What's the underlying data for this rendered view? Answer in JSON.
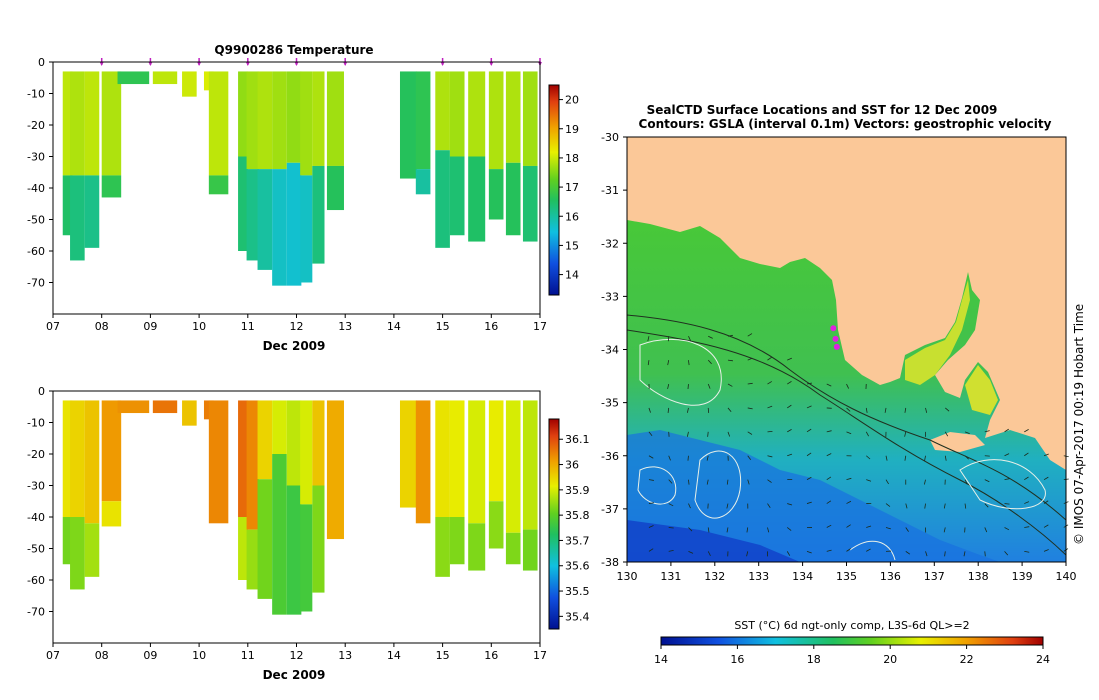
{
  "chart_data": [
    {
      "type": "heatmap",
      "title": "Q9900286  Temperature",
      "xlabel": "Dec 2009",
      "x_ticks": [
        "07",
        "08",
        "09",
        "10",
        "11",
        "12",
        "13",
        "14",
        "15",
        "16",
        "17"
      ],
      "y_ticks": [
        "0",
        "-10",
        "-20",
        "-30",
        "-40",
        "-50",
        "-60",
        "-70"
      ],
      "ylim": [
        -80,
        0
      ],
      "xlim": [
        7,
        17
      ],
      "profile_markers": [
        8.0,
        9.0,
        10.0,
        11.0,
        12.0,
        13.0,
        15.0,
        16.0,
        17.0
      ],
      "colorbar_ticks": [
        "14",
        "15",
        "16",
        "17",
        "18",
        "19",
        "20"
      ],
      "colorbar_range": [
        13.3,
        20.5
      ],
      "profiles": [
        {
          "t": 7.3,
          "w": 0.2,
          "bottom": -55,
          "layers": [
            [
              -3,
              -36,
              17.9
            ],
            [
              -36,
              -55,
              16.5
            ]
          ]
        },
        {
          "t": 7.5,
          "w": 0.3,
          "bottom": -63,
          "layers": [
            [
              -3,
              -36,
              17.8
            ],
            [
              -36,
              -63,
              16.3
            ]
          ]
        },
        {
          "t": 7.8,
          "w": 0.3,
          "bottom": -59,
          "layers": [
            [
              -3,
              -36,
              17.9
            ],
            [
              -36,
              -59,
              16.2
            ]
          ]
        },
        {
          "t": 8.2,
          "w": 0.4,
          "bottom": -43,
          "layers": [
            [
              -3,
              -36,
              17.8
            ],
            [
              -36,
              -43,
              16.7
            ]
          ]
        },
        {
          "t": 8.65,
          "w": 0.65,
          "bottom": -7,
          "layers": [
            [
              -3,
              -7,
              16.7
            ]
          ]
        },
        {
          "t": 9.3,
          "w": 0.5,
          "bottom": -7,
          "layers": [
            [
              -3,
              -7,
              17.9
            ]
          ]
        },
        {
          "t": 9.8,
          "w": 0.3,
          "bottom": -11,
          "layers": [
            [
              -3,
              -11,
              18.0
            ]
          ]
        },
        {
          "t": 10.2,
          "w": 0.2,
          "bottom": -9,
          "layers": [
            [
              -3,
              -9,
              18.1
            ]
          ]
        },
        {
          "t": 10.4,
          "w": 0.4,
          "bottom": -42,
          "layers": [
            [
              -3,
              -36,
              17.9
            ],
            [
              -36,
              -42,
              16.8
            ]
          ]
        },
        {
          "t": 10.9,
          "w": 0.2,
          "bottom": -60,
          "layers": [
            [
              -3,
              -30,
              17.6
            ],
            [
              -30,
              -60,
              16.4
            ]
          ]
        },
        {
          "t": 11.1,
          "w": 0.25,
          "bottom": -63,
          "layers": [
            [
              -3,
              -34,
              17.7
            ],
            [
              -34,
              -63,
              16.2
            ]
          ]
        },
        {
          "t": 11.35,
          "w": 0.3,
          "bottom": -66,
          "layers": [
            [
              -3,
              -34,
              17.8
            ],
            [
              -34,
              -66,
              16.0
            ]
          ]
        },
        {
          "t": 11.65,
          "w": 0.3,
          "bottom": -71,
          "layers": [
            [
              -3,
              -34,
              17.7
            ],
            [
              -34,
              -71,
              15.7
            ]
          ]
        },
        {
          "t": 11.95,
          "w": 0.3,
          "bottom": -71,
          "layers": [
            [
              -3,
              -32,
              17.6
            ],
            [
              -32,
              -71,
              15.6
            ]
          ]
        },
        {
          "t": 12.2,
          "w": 0.25,
          "bottom": -70,
          "layers": [
            [
              -3,
              -36,
              17.7
            ],
            [
              -36,
              -70,
              15.7
            ]
          ]
        },
        {
          "t": 12.45,
          "w": 0.25,
          "bottom": -64,
          "layers": [
            [
              -3,
              -33,
              17.8
            ],
            [
              -33,
              -64,
              16.3
            ]
          ]
        },
        {
          "t": 12.8,
          "w": 0.35,
          "bottom": -47,
          "layers": [
            [
              -3,
              -33,
              17.7
            ],
            [
              -33,
              -47,
              16.6
            ]
          ]
        },
        {
          "t": 14.3,
          "w": 0.35,
          "bottom": -37,
          "layers": [
            [
              -3,
              -37,
              16.6
            ]
          ]
        },
        {
          "t": 14.6,
          "w": 0.3,
          "bottom": -42,
          "layers": [
            [
              -3,
              -34,
              16.7
            ],
            [
              -34,
              -42,
              16.0
            ]
          ]
        },
        {
          "t": 15.0,
          "w": 0.3,
          "bottom": -59,
          "layers": [
            [
              -3,
              -28,
              17.8
            ],
            [
              -28,
              -59,
              16.3
            ]
          ]
        },
        {
          "t": 15.3,
          "w": 0.3,
          "bottom": -55,
          "layers": [
            [
              -3,
              -30,
              17.7
            ],
            [
              -30,
              -55,
              16.4
            ]
          ]
        },
        {
          "t": 15.7,
          "w": 0.35,
          "bottom": -57,
          "layers": [
            [
              -3,
              -30,
              17.8
            ],
            [
              -30,
              -57,
              16.5
            ]
          ]
        },
        {
          "t": 16.1,
          "w": 0.3,
          "bottom": -50,
          "layers": [
            [
              -3,
              -34,
              17.8
            ],
            [
              -34,
              -50,
              16.6
            ]
          ]
        },
        {
          "t": 16.45,
          "w": 0.3,
          "bottom": -55,
          "layers": [
            [
              -3,
              -32,
              17.8
            ],
            [
              -32,
              -55,
              16.6
            ]
          ]
        },
        {
          "t": 16.8,
          "w": 0.3,
          "bottom": -57,
          "layers": [
            [
              -3,
              -33,
              17.7
            ],
            [
              -33,
              -57,
              16.4
            ]
          ]
        }
      ]
    },
    {
      "type": "heatmap",
      "title": "",
      "xlabel": "Dec 2009",
      "x_ticks": [
        "07",
        "08",
        "09",
        "10",
        "11",
        "12",
        "13",
        "14",
        "15",
        "16",
        "17"
      ],
      "y_ticks": [
        "0",
        "-10",
        "-20",
        "-30",
        "-40",
        "-50",
        "-60",
        "-70"
      ],
      "ylim": [
        -80,
        0
      ],
      "xlim": [
        7,
        17
      ],
      "colorbar_ticks": [
        "35.4",
        "35.5",
        "35.6",
        "35.7",
        "35.8",
        "35.9",
        "36",
        "36.1"
      ],
      "colorbar_range": [
        35.35,
        36.18
      ],
      "profiles": [
        {
          "t": 7.3,
          "w": 0.2,
          "bottom": -55,
          "layers": [
            [
              -3,
              -40,
              35.93
            ],
            [
              -40,
              -55,
              35.82
            ]
          ]
        },
        {
          "t": 7.5,
          "w": 0.3,
          "bottom": -63,
          "layers": [
            [
              -3,
              -40,
              35.95
            ],
            [
              -40,
              -63,
              35.83
            ]
          ]
        },
        {
          "t": 7.8,
          "w": 0.3,
          "bottom": -59,
          "layers": [
            [
              -3,
              -42,
              35.97
            ],
            [
              -42,
              -59,
              35.86
            ]
          ]
        },
        {
          "t": 8.2,
          "w": 0.4,
          "bottom": -43,
          "layers": [
            [
              -3,
              -35,
              36.02
            ],
            [
              -35,
              -43,
              35.93
            ]
          ]
        },
        {
          "t": 8.65,
          "w": 0.65,
          "bottom": -7,
          "layers": [
            [
              -3,
              -7,
              36.03
            ]
          ]
        },
        {
          "t": 9.3,
          "w": 0.5,
          "bottom": -7,
          "layers": [
            [
              -3,
              -7,
              36.06
            ]
          ]
        },
        {
          "t": 9.8,
          "w": 0.3,
          "bottom": -11,
          "layers": [
            [
              -3,
              -11,
              35.97
            ]
          ]
        },
        {
          "t": 10.2,
          "w": 0.2,
          "bottom": -9,
          "layers": [
            [
              -3,
              -9,
              36.05
            ]
          ]
        },
        {
          "t": 10.4,
          "w": 0.4,
          "bottom": -42,
          "layers": [
            [
              -3,
              -42,
              36.04
            ]
          ]
        },
        {
          "t": 10.9,
          "w": 0.2,
          "bottom": -60,
          "layers": [
            [
              -3,
              -40,
              36.07
            ],
            [
              -40,
              -60,
              35.88
            ]
          ]
        },
        {
          "t": 11.1,
          "w": 0.25,
          "bottom": -63,
          "layers": [
            [
              -3,
              -44,
              36.04
            ],
            [
              -44,
              -63,
              35.85
            ]
          ]
        },
        {
          "t": 11.35,
          "w": 0.3,
          "bottom": -66,
          "layers": [
            [
              -3,
              -28,
              35.95
            ],
            [
              -28,
              -66,
              35.82
            ]
          ]
        },
        {
          "t": 11.65,
          "w": 0.3,
          "bottom": -71,
          "layers": [
            [
              -3,
              -20,
              35.9
            ],
            [
              -20,
              -71,
              35.78
            ]
          ]
        },
        {
          "t": 11.95,
          "w": 0.3,
          "bottom": -71,
          "layers": [
            [
              -3,
              -30,
              35.88
            ],
            [
              -30,
              -71,
              35.76
            ]
          ]
        },
        {
          "t": 12.2,
          "w": 0.25,
          "bottom": -70,
          "layers": [
            [
              -3,
              -36,
              35.9
            ],
            [
              -36,
              -70,
              35.77
            ]
          ]
        },
        {
          "t": 12.45,
          "w": 0.25,
          "bottom": -64,
          "layers": [
            [
              -3,
              -30,
              35.97
            ],
            [
              -30,
              -64,
              35.83
            ]
          ]
        },
        {
          "t": 12.8,
          "w": 0.35,
          "bottom": -47,
          "layers": [
            [
              -3,
              -47,
              36.0
            ]
          ]
        },
        {
          "t": 14.3,
          "w": 0.35,
          "bottom": -37,
          "layers": [
            [
              -3,
              -37,
              35.95
            ]
          ]
        },
        {
          "t": 14.6,
          "w": 0.3,
          "bottom": -42,
          "layers": [
            [
              -3,
              -42,
              36.03
            ]
          ]
        },
        {
          "t": 15.0,
          "w": 0.3,
          "bottom": -59,
          "layers": [
            [
              -3,
              -40,
              35.93
            ],
            [
              -40,
              -59,
              35.84
            ]
          ]
        },
        {
          "t": 15.3,
          "w": 0.3,
          "bottom": -55,
          "layers": [
            [
              -3,
              -40,
              35.92
            ],
            [
              -40,
              -55,
              35.83
            ]
          ]
        },
        {
          "t": 15.7,
          "w": 0.35,
          "bottom": -57,
          "layers": [
            [
              -3,
              -42,
              35.9
            ],
            [
              -42,
              -57,
              35.83
            ]
          ]
        },
        {
          "t": 16.1,
          "w": 0.3,
          "bottom": -50,
          "layers": [
            [
              -3,
              -35,
              35.92
            ],
            [
              -35,
              -50,
              35.84
            ]
          ]
        },
        {
          "t": 16.45,
          "w": 0.3,
          "bottom": -55,
          "layers": [
            [
              -3,
              -45,
              35.9
            ],
            [
              -45,
              -55,
              35.83
            ]
          ]
        },
        {
          "t": 16.8,
          "w": 0.3,
          "bottom": -57,
          "layers": [
            [
              -3,
              -44,
              35.88
            ],
            [
              -44,
              -57,
              35.82
            ]
          ]
        }
      ]
    },
    {
      "type": "heatmap",
      "title_line1": "SealCTD Surface Locations and SST for 12 Dec 2009",
      "title_line2": "Contours: GSLA (interval 0.1m) Vectors: geostrophic velocity",
      "x_ticks": [
        "130",
        "131",
        "132",
        "133",
        "134",
        "135",
        "136",
        "137",
        "138",
        "139",
        "140"
      ],
      "y_ticks": [
        "-30",
        "-31",
        "-32",
        "-33",
        "-34",
        "-35",
        "-36",
        "-37",
        "-38"
      ],
      "xlim": [
        130,
        140
      ],
      "ylim": [
        -38,
        -30
      ],
      "colorbar_label": "SST (°C) 6d ngt-only comp, L3S-6d QL>=2",
      "colorbar_ticks": [
        "14",
        "16",
        "18",
        "20",
        "22",
        "24"
      ],
      "colorbar_range": [
        14,
        24
      ],
      "credit": "© IMOS 07-Apr-2017 00:19 Hobart Time",
      "seal_locations": [
        [
          134.7,
          -33.6
        ],
        [
          134.75,
          -33.8
        ],
        [
          134.78,
          -33.95
        ]
      ]
    }
  ]
}
